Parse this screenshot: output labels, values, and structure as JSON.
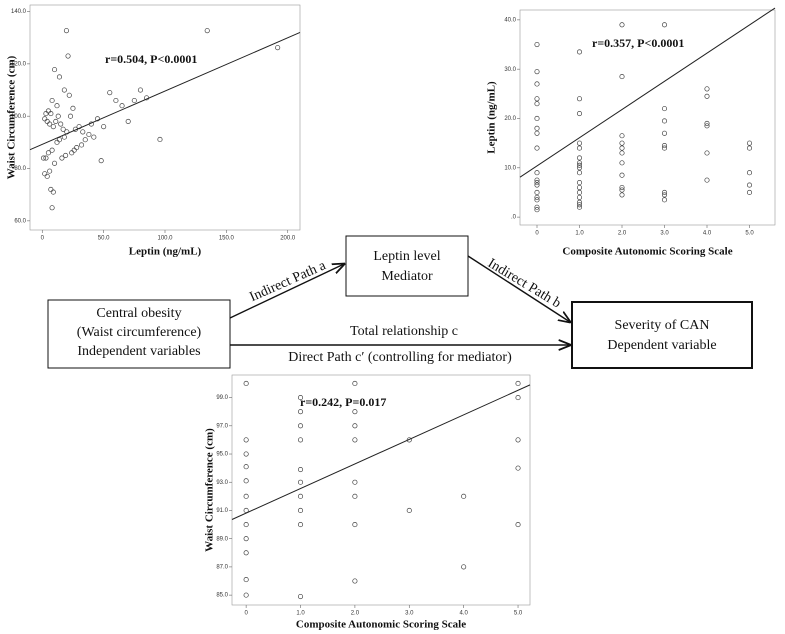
{
  "chart_data": [
    {
      "type": "scatter",
      "x_label": "Leptin (ng/mL)",
      "y_label": "Waist Circumference (cm)",
      "annotation": "r=0.504, P<0.0001",
      "x": [
        134.4,
        191.8,
        95.9,
        19.7,
        10,
        21,
        14,
        22,
        18,
        8,
        12,
        5,
        3,
        7,
        2,
        4,
        6,
        9,
        11,
        13,
        15,
        17,
        20,
        23,
        25,
        27,
        30,
        33,
        35,
        40,
        45,
        50,
        55,
        60,
        65,
        70,
        75,
        80,
        85,
        48,
        28,
        24,
        19,
        16,
        3,
        1,
        5,
        8,
        10,
        6,
        2,
        4,
        7,
        9,
        8,
        12,
        14,
        18,
        26,
        32,
        38,
        42
      ],
      "y": [
        132.7,
        126.2,
        91.1,
        132.7,
        117.8,
        123,
        115,
        108,
        110,
        106,
        104,
        102,
        101,
        101,
        99,
        98,
        97,
        96,
        98,
        100,
        97,
        95,
        94,
        100,
        103,
        95,
        96,
        94,
        91,
        97,
        99,
        96,
        109,
        106,
        104,
        98,
        106,
        110,
        107,
        83,
        88,
        86,
        85,
        84,
        84,
        84,
        86,
        87,
        82,
        79,
        78,
        77,
        72,
        71,
        65,
        90,
        91,
        92,
        87,
        89,
        93,
        92
      ],
      "fit": {
        "x": [
          -10,
          210
        ],
        "y": [
          87.2,
          132
        ]
      },
      "xlim": [
        -10,
        210
      ],
      "ylim": [
        56.5,
        142.5
      ],
      "xticks": [
        0,
        {
          "value": 50,
          "label": "50.0"
        },
        {
          "value": 100,
          "label": "100.0"
        },
        {
          "value": 150,
          "label": "150.0"
        },
        {
          "value": 200,
          "label": "200.0"
        }
      ],
      "yticks": [
        {
          "value": 60,
          "label": "60.0"
        },
        {
          "value": 80,
          "label": "80.0"
        },
        {
          "value": 100,
          "label": "100.0"
        },
        {
          "value": 120,
          "label": "120.0"
        },
        {
          "value": 140,
          "label": "140.0"
        }
      ],
      "color": "#444444"
    },
    {
      "type": "scatter",
      "x_label": "Composite Autonomic Scoring Scale",
      "y_label": "Leptin (ng/mL)",
      "annotation": "r=0.357, P<0.0001",
      "x": [
        0,
        0,
        0,
        0,
        0,
        0,
        0,
        0,
        0,
        0,
        0,
        0,
        0,
        0,
        0,
        0,
        0,
        0,
        1,
        1,
        1,
        1,
        1,
        1,
        1,
        1,
        1,
        1,
        1,
        1,
        1,
        1,
        1,
        1,
        1,
        2,
        2,
        2,
        2,
        2,
        2,
        2,
        2,
        2,
        2,
        2,
        3,
        3,
        3,
        3,
        3,
        3,
        3,
        3,
        3,
        4,
        4,
        4,
        4,
        4,
        4,
        5,
        5,
        5,
        5,
        5
      ],
      "y": [
        35,
        29.5,
        27,
        24,
        23,
        20,
        18,
        17,
        14,
        9,
        7.5,
        7,
        6.5,
        5,
        4,
        3.5,
        2,
        1.5,
        33.5,
        24,
        21,
        15,
        14,
        12,
        11,
        10.5,
        10,
        9,
        7,
        6,
        5,
        4,
        3,
        2.5,
        2,
        39,
        28.5,
        16.5,
        15,
        14,
        13,
        11,
        8.5,
        6,
        5.5,
        4.5,
        39,
        22,
        19.5,
        17,
        14.5,
        14,
        5,
        4.5,
        3.5,
        26,
        24.5,
        19,
        18.5,
        13,
        7.5,
        15,
        14,
        9,
        6.5,
        5
      ],
      "fit": {
        "x": [
          -0.4,
          5.6
        ],
        "y": [
          8.1,
          42.4
        ]
      },
      "xlim": [
        -0.4,
        5.6
      ],
      "ylim": [
        -1.6,
        42
      ],
      "xticks": [
        0,
        {
          "value": 1,
          "label": "1.0"
        },
        {
          "value": 2,
          "label": "2.0"
        },
        {
          "value": 3,
          "label": "3.0"
        },
        {
          "value": 4,
          "label": "4.0"
        },
        {
          "value": 5,
          "label": "5.0"
        }
      ],
      "yticks": [
        {
          "value": 0,
          "label": ".0"
        },
        {
          "value": 10,
          "label": "10.0"
        },
        {
          "value": 20,
          "label": "20.0"
        },
        {
          "value": 30,
          "label": "30.0"
        },
        {
          "value": 40,
          "label": "40.0"
        }
      ],
      "color": "#444444"
    },
    {
      "type": "scatter",
      "x_label": "Composite Autonomic Scoring Scale",
      "y_label": "Waist Circumference (cm)",
      "annotation": "r=0.242, P=0.017",
      "x": [
        0,
        0,
        0,
        0,
        0,
        0,
        0,
        0,
        0,
        0,
        0,
        0,
        1,
        1,
        1,
        1,
        1,
        1,
        1,
        1,
        1,
        1,
        2,
        2,
        2,
        2,
        2,
        2,
        2,
        2,
        3,
        3,
        4,
        4,
        5,
        5,
        5,
        5,
        5
      ],
      "y": [
        100,
        96,
        95,
        94.1,
        93.1,
        92,
        91,
        90,
        89,
        88,
        86.1,
        85,
        99,
        98,
        97,
        96,
        93.9,
        93,
        92,
        91,
        90,
        84.9,
        100,
        98,
        97,
        96,
        93,
        92,
        90,
        86,
        96,
        91,
        92,
        87,
        100,
        99,
        96,
        94,
        90
      ],
      "fit": {
        "x": [
          -0.26,
          5.22
        ],
        "y": [
          90.36,
          99.9
        ]
      },
      "xlim": [
        -0.26,
        5.22
      ],
      "ylim": [
        84.3,
        100.6
      ],
      "xticks": [
        0,
        {
          "value": 1,
          "label": "1.0"
        },
        {
          "value": 2,
          "label": "2.0"
        },
        {
          "value": 3,
          "label": "3.0"
        },
        {
          "value": 4,
          "label": "4.0"
        },
        {
          "value": 5,
          "label": "5.0"
        }
      ],
      "yticks": [
        {
          "value": 85,
          "label": "85.0"
        },
        {
          "value": 87,
          "label": "87.0"
        },
        {
          "value": 89,
          "label": "89.0"
        },
        {
          "value": 91,
          "label": "91.0"
        },
        {
          "value": 93,
          "label": "93.0"
        },
        {
          "value": 95,
          "label": "95.0"
        },
        {
          "value": 97,
          "label": "97.0"
        },
        {
          "value": 99,
          "label": "99.0"
        }
      ],
      "color": "#444444"
    }
  ],
  "diagram": {
    "nodes": [
      {
        "lines": [
          "Central obesity",
          "(Waist circumference)",
          "Independent variables"
        ]
      },
      {
        "lines": [
          "Leptin level",
          "Mediator"
        ]
      },
      {
        "lines": [
          "Severity of  CAN",
          "Dependent variable"
        ]
      }
    ],
    "edges": [
      {
        "label": "Indirect Path a"
      },
      {
        "label": "Indirect Path b"
      },
      {
        "label": "Total relationship c",
        "label2": "Direct Path c′ (controlling for mediator)"
      }
    ]
  }
}
